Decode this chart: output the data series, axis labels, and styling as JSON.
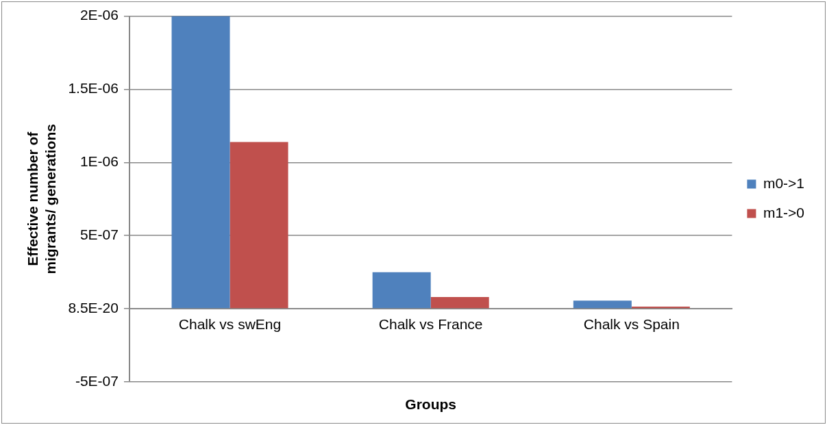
{
  "chart_data": {
    "type": "bar",
    "xlabel": "Groups",
    "ylabel": "Effective number of migrants/ generations",
    "categories": [
      "Chalk vs swEng",
      "Chalk vs France",
      "Chalk vs Spain"
    ],
    "series": [
      {
        "name": "m0->1",
        "color": "#4f81bd",
        "values": [
          2e-06,
          2.5e-07,
          5.5e-08
        ]
      },
      {
        "name": "m1->0",
        "color": "#c0504d",
        "values": [
          1.14e-06,
          8e-08,
          1.5e-08
        ]
      }
    ],
    "ylim": [
      -5e-07,
      2e-06
    ],
    "yticks": [
      {
        "value": -5e-07,
        "label": "-5E-07"
      },
      {
        "value": 0,
        "label": "8.5E-20"
      },
      {
        "value": 5e-07,
        "label": "5E-07"
      },
      {
        "value": 1e-06,
        "label": "1E-06"
      },
      {
        "value": 1.5e-06,
        "label": "1.5E-06"
      },
      {
        "value": 2e-06,
        "label": "2E-06"
      }
    ],
    "grid": "y",
    "legend": "right"
  }
}
